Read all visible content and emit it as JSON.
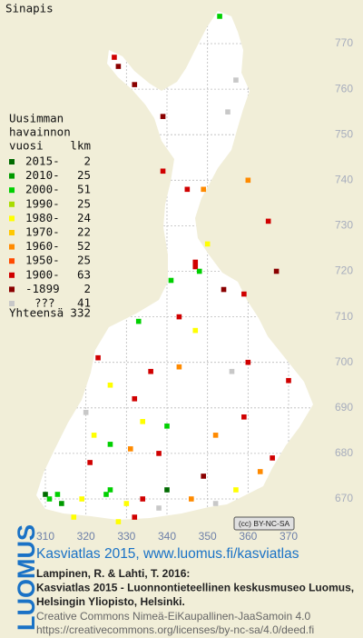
{
  "title": "Sinapis",
  "legend": {
    "heading": [
      "Uusimman",
      "havainnon",
      "vuosi"
    ],
    "count_heading": "lkm",
    "rows": [
      {
        "label": "2015-",
        "count": 2,
        "color": "#006a00"
      },
      {
        "label": "2010-",
        "count": 25,
        "color": "#009a00"
      },
      {
        "label": "2000-",
        "count": 51,
        "color": "#00d000"
      },
      {
        "label": "1990-",
        "count": 25,
        "color": "#a8dc00"
      },
      {
        "label": "1980-",
        "count": 24,
        "color": "#ffff00"
      },
      {
        "label": "1970-",
        "count": 22,
        "color": "#ffc800"
      },
      {
        "label": "1960-",
        "count": 52,
        "color": "#ff8a00"
      },
      {
        "label": "1950-",
        "count": 25,
        "color": "#ff4a00"
      },
      {
        "label": "1900-",
        "count": 63,
        "color": "#d00000"
      },
      {
        "label": "-1899",
        "count": 2,
        "color": "#8a0000"
      },
      {
        "label": "???",
        "count": 41,
        "color": "#c8c8c8"
      }
    ],
    "total_label": "Yhteensä",
    "total": 332
  },
  "grid": {
    "north": [
      770,
      760,
      750,
      740,
      730,
      720,
      710,
      700,
      690,
      680,
      670
    ],
    "east": [
      310,
      320,
      330,
      340,
      350,
      360,
      370
    ]
  },
  "squares": [
    {
      "e": 353,
      "n": 776,
      "period": 2
    },
    {
      "e": 327,
      "n": 767,
      "period": 8
    },
    {
      "e": 328,
      "n": 765,
      "period": 9
    },
    {
      "e": 332,
      "n": 761,
      "period": 9
    },
    {
      "e": 357,
      "n": 762,
      "period": 10
    },
    {
      "e": 339,
      "n": 754,
      "period": 9
    },
    {
      "e": 355,
      "n": 755,
      "period": 10
    },
    {
      "e": 339,
      "n": 742,
      "period": 8
    },
    {
      "e": 349,
      "n": 738,
      "period": 6
    },
    {
      "e": 360,
      "n": 740,
      "period": 6
    },
    {
      "e": 345,
      "n": 738,
      "period": 8
    },
    {
      "e": 365,
      "n": 731,
      "period": 8
    },
    {
      "e": 350,
      "n": 726,
      "period": 4
    },
    {
      "e": 347,
      "n": 722,
      "period": 8
    },
    {
      "e": 347,
      "n": 721,
      "period": 8
    },
    {
      "e": 348,
      "n": 720,
      "period": 2
    },
    {
      "e": 341,
      "n": 718,
      "period": 2
    },
    {
      "e": 354,
      "n": 716,
      "period": 9
    },
    {
      "e": 359,
      "n": 715,
      "period": 8
    },
    {
      "e": 367,
      "n": 720,
      "period": 9
    },
    {
      "e": 333,
      "n": 709,
      "period": 2
    },
    {
      "e": 343,
      "n": 710,
      "period": 8
    },
    {
      "e": 347,
      "n": 707,
      "period": 4
    },
    {
      "e": 323,
      "n": 701,
      "period": 8
    },
    {
      "e": 336,
      "n": 698,
      "period": 8
    },
    {
      "e": 343,
      "n": 699,
      "period": 6
    },
    {
      "e": 356,
      "n": 698,
      "period": 10
    },
    {
      "e": 360,
      "n": 700,
      "period": 8
    },
    {
      "e": 370,
      "n": 696,
      "period": 8
    },
    {
      "e": 326,
      "n": 695,
      "period": 4
    },
    {
      "e": 332,
      "n": 692,
      "period": 8
    },
    {
      "e": 340,
      "n": 686,
      "period": 2
    },
    {
      "e": 322,
      "n": 684,
      "period": 4
    },
    {
      "e": 326,
      "n": 682,
      "period": 2
    },
    {
      "e": 331,
      "n": 681,
      "period": 6
    },
    {
      "e": 338,
      "n": 680,
      "period": 8
    },
    {
      "e": 310,
      "n": 671,
      "period": 0
    },
    {
      "e": 311,
      "n": 670,
      "period": 2
    },
    {
      "e": 313,
      "n": 671,
      "period": 2
    },
    {
      "e": 314,
      "n": 669,
      "period": 1
    },
    {
      "e": 319,
      "n": 670,
      "period": 4
    },
    {
      "e": 325,
      "n": 671,
      "period": 2
    },
    {
      "e": 326,
      "n": 672,
      "period": 2
    },
    {
      "e": 330,
      "n": 669,
      "period": 4
    },
    {
      "e": 334,
      "n": 670,
      "period": 8
    },
    {
      "e": 340,
      "n": 672,
      "period": 0
    },
    {
      "e": 346,
      "n": 670,
      "period": 6
    },
    {
      "e": 352,
      "n": 669,
      "period": 10
    },
    {
      "e": 357,
      "n": 672,
      "period": 4
    },
    {
      "e": 363,
      "n": 676,
      "period": 6
    },
    {
      "e": 366,
      "n": 679,
      "period": 8
    },
    {
      "e": 328,
      "n": 665,
      "period": 4
    },
    {
      "e": 332,
      "n": 666,
      "period": 8
    },
    {
      "e": 317,
      "n": 666,
      "period": 4
    },
    {
      "e": 338,
      "n": 668,
      "period": 10
    },
    {
      "e": 349,
      "n": 675,
      "period": 9
    },
    {
      "e": 321,
      "n": 678,
      "period": 8
    },
    {
      "e": 359,
      "n": 688,
      "period": 8
    },
    {
      "e": 352,
      "n": 684,
      "period": 6
    },
    {
      "e": 334,
      "n": 687,
      "period": 4
    },
    {
      "e": 320,
      "n": 689,
      "period": 10
    }
  ],
  "badge": "(cc) BY-NC-SA",
  "footer": {
    "logo": "LUOMUS",
    "link": "Kasviatlas 2015, www.luomus.fi/kasviatlas",
    "citation": [
      "Lampinen, R. & Lahti, T. 2016:",
      "Kasviatlas 2015 - Luonnontieteellinen keskusmuseo Luomus,",
      "Helsingin Yliopisto, Helsinki."
    ],
    "license": [
      "Creative Commons Nimeä-EiKaupallinen-JaaSamoin 4.0",
      "https://creativecommons.org/licenses/by-nc-sa/4.0/deed.fi"
    ]
  }
}
